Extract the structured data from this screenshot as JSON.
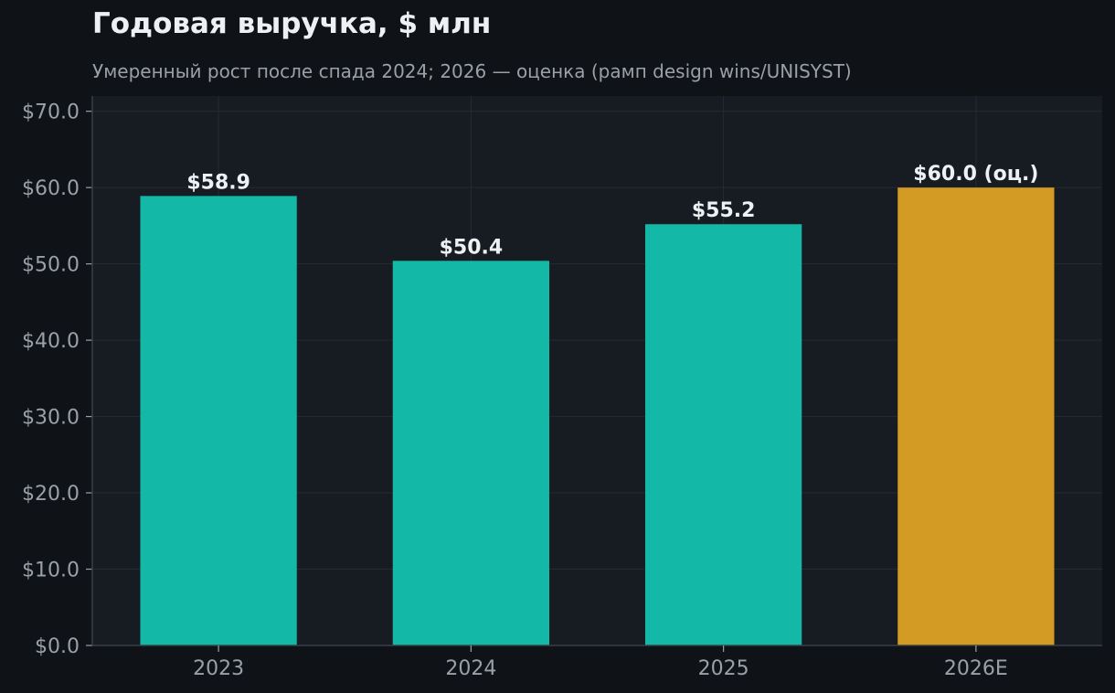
{
  "chart_data": {
    "type": "bar",
    "title": "Годовая выручка, $ млн",
    "subtitle": "Умеренный рост после спада 2024; 2026 — оценка (рамп design wins/UNISYST)",
    "categories": [
      "2023",
      "2024",
      "2025",
      "2026E"
    ],
    "values": [
      58.9,
      50.4,
      55.2,
      60.0
    ],
    "data_labels": [
      "$58.9",
      "$50.4",
      "$55.2",
      "$60.0 (оц.)"
    ],
    "bar_colors": [
      "#14b8a6",
      "#14b8a6",
      "#14b8a6",
      "#d39a24"
    ],
    "ylim": [
      0,
      72
    ],
    "yticks": [
      0,
      10,
      20,
      30,
      40,
      50,
      60,
      70
    ],
    "ytick_labels": [
      "$0.0",
      "$10.0",
      "$20.0",
      "$30.0",
      "$40.0",
      "$50.0",
      "$60.0",
      "$70.0"
    ],
    "grid": true,
    "xlabel": "",
    "ylabel": ""
  },
  "colors": {
    "background": "#0f1317",
    "plot_background": "#171b22",
    "grid": "#262b33",
    "axis": "#3a3f47",
    "text": "#eef1f4",
    "muted_text": "#9aa0a6"
  }
}
